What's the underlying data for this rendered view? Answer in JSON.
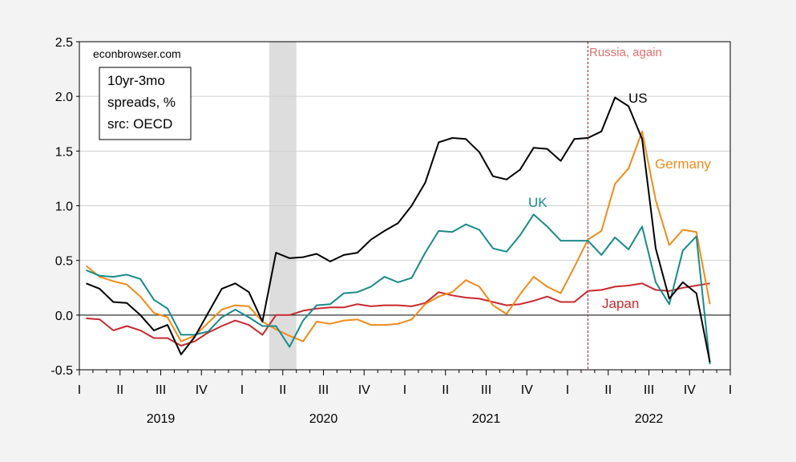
{
  "chart_data": {
    "type": "line",
    "title": "",
    "xlabel": "",
    "ylabel": "",
    "x_start": "2019-01",
    "x_end": "2022-12",
    "x_quarter_ticks": [
      "I",
      "II",
      "III",
      "IV",
      "I",
      "II",
      "III",
      "IV",
      "I",
      "II",
      "III",
      "IV",
      "I",
      "II",
      "III",
      "IV",
      "I"
    ],
    "x_year_labels": [
      "2019",
      "2020",
      "2021",
      "2022"
    ],
    "ylim": [
      -0.5,
      2.5
    ],
    "yticks": [
      "-0.5",
      "0.0",
      "0.5",
      "1.0",
      "1.5",
      "2.0",
      "2.5"
    ],
    "grid": true,
    "recession_shade": {
      "start": "2020-03",
      "end": "2020-05"
    },
    "event_line": {
      "date": "2022-02",
      "label": "Russia, again",
      "color": "#e07070"
    },
    "annotations": {
      "source": "econbrowser.com",
      "box_lines": [
        "10yr-3mo",
        "spreads, %",
        "src: OECD"
      ]
    },
    "series": [
      {
        "name": "US",
        "color": "#000000",
        "values": [
          0.29,
          0.24,
          0.12,
          0.11,
          0.0,
          -0.14,
          -0.09,
          -0.36,
          -0.2,
          0.02,
          0.24,
          0.29,
          0.21,
          -0.06,
          0.57,
          0.52,
          0.53,
          0.56,
          0.49,
          0.55,
          0.57,
          0.69,
          0.77,
          0.84,
          1.0,
          1.21,
          1.58,
          1.62,
          1.61,
          1.49,
          1.27,
          1.24,
          1.33,
          1.53,
          1.52,
          1.41,
          1.61,
          1.62,
          1.68,
          1.99,
          1.91,
          1.61,
          0.61,
          0.15,
          0.3,
          0.2,
          -0.43
        ]
      },
      {
        "name": "UK",
        "color": "#1a8a8a",
        "values": [
          0.41,
          0.36,
          0.35,
          0.37,
          0.33,
          0.14,
          0.06,
          -0.18,
          -0.18,
          -0.15,
          -0.02,
          0.05,
          -0.02,
          -0.1,
          -0.1,
          -0.29,
          -0.05,
          0.09,
          0.1,
          0.2,
          0.21,
          0.26,
          0.35,
          0.3,
          0.34,
          0.57,
          0.77,
          0.76,
          0.83,
          0.78,
          0.61,
          0.58,
          0.73,
          0.92,
          0.81,
          0.68,
          0.68,
          0.68,
          0.55,
          0.71,
          0.6,
          0.81,
          0.3,
          0.1,
          0.59,
          0.72,
          -0.45
        ]
      },
      {
        "name": "Germany",
        "color": "#f08c1a",
        "values": [
          0.45,
          0.35,
          0.31,
          0.28,
          0.17,
          0.02,
          -0.02,
          -0.24,
          -0.19,
          -0.07,
          0.05,
          0.09,
          0.08,
          -0.06,
          -0.13,
          -0.19,
          -0.24,
          -0.06,
          -0.08,
          -0.05,
          -0.04,
          -0.09,
          -0.09,
          -0.08,
          -0.04,
          0.1,
          0.17,
          0.21,
          0.32,
          0.26,
          0.09,
          0.01,
          0.19,
          0.35,
          0.26,
          0.2,
          0.44,
          0.69,
          0.77,
          1.2,
          1.34,
          1.68,
          1.05,
          0.64,
          0.78,
          0.76,
          0.1
        ]
      },
      {
        "name": "Japan",
        "color": "#c8282e",
        "values": [
          -0.03,
          -0.04,
          -0.14,
          -0.1,
          -0.14,
          -0.21,
          -0.21,
          -0.28,
          -0.24,
          -0.16,
          -0.1,
          -0.05,
          -0.09,
          -0.18,
          0.0,
          0.0,
          0.04,
          0.06,
          0.07,
          0.07,
          0.1,
          0.08,
          0.09,
          0.09,
          0.08,
          0.11,
          0.21,
          0.18,
          0.16,
          0.15,
          0.12,
          0.09,
          0.1,
          0.13,
          0.17,
          0.12,
          0.12,
          0.22,
          0.23,
          0.26,
          0.27,
          0.29,
          0.23,
          0.22,
          0.25,
          0.27,
          0.29
        ]
      }
    ]
  }
}
